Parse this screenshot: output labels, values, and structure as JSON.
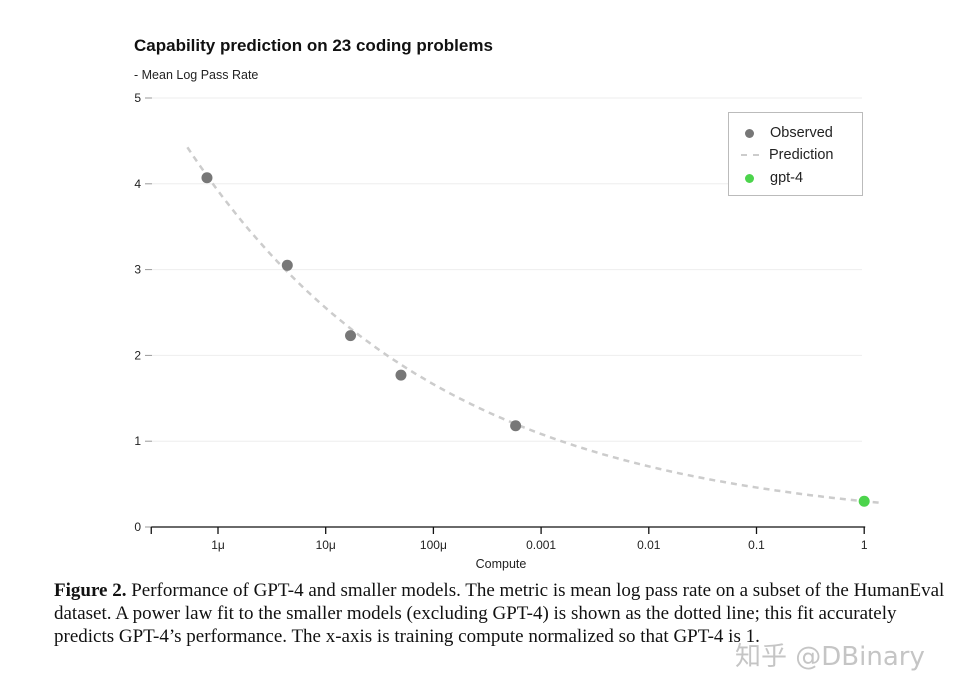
{
  "chart_data": {
    "type": "scatter",
    "title": "Capability prediction on 23 coding problems",
    "ylabel": "- Mean Log Pass Rate",
    "xlabel": "Compute",
    "xscale": "log",
    "xlim": [
      2.4e-07,
      1.4
    ],
    "ylim": [
      0,
      5
    ],
    "yticks": [
      0,
      1,
      2,
      3,
      4,
      5
    ],
    "xticks": [
      {
        "value": 1e-06,
        "label": "1μ"
      },
      {
        "value": 1e-05,
        "label": "10μ"
      },
      {
        "value": 0.0001,
        "label": "100μ"
      },
      {
        "value": 0.001,
        "label": "0.001"
      },
      {
        "value": 0.01,
        "label": "0.01"
      },
      {
        "value": 0.1,
        "label": "0.1"
      },
      {
        "value": 1,
        "label": "1"
      }
    ],
    "grid": "horizontal",
    "legend_position": "top-right",
    "series": [
      {
        "name": "Observed",
        "kind": "points",
        "color": "#777777",
        "x": [
          7.9e-07,
          4.4e-06,
          1.7e-05,
          5e-05,
          0.00058
        ],
        "y": [
          4.07,
          3.05,
          2.23,
          1.77,
          1.18
        ]
      },
      {
        "name": "Prediction",
        "kind": "dashed-line",
        "color": "#cccccc",
        "fit": {
          "form": "y = a * x^(-b)",
          "a": 0.3,
          "b": 0.186
        },
        "x_range": [
          5.2e-07,
          1.4
        ]
      },
      {
        "name": "gpt-4",
        "kind": "points",
        "color": "#4cd44c",
        "x": [
          1
        ],
        "y": [
          0.3
        ]
      }
    ]
  },
  "caption": {
    "label": "Figure 2.",
    "text": " Performance of GPT-4 and smaller models. The metric is mean log pass rate on a subset of the HumanEval dataset. A power law fit to the smaller models (excluding GPT-4) is shown as the dotted line; this fit accurately predicts GPT-4’s performance. The x-axis is training compute normalized so that GPT-4 is 1."
  },
  "watermark": "知乎 @DBinary"
}
